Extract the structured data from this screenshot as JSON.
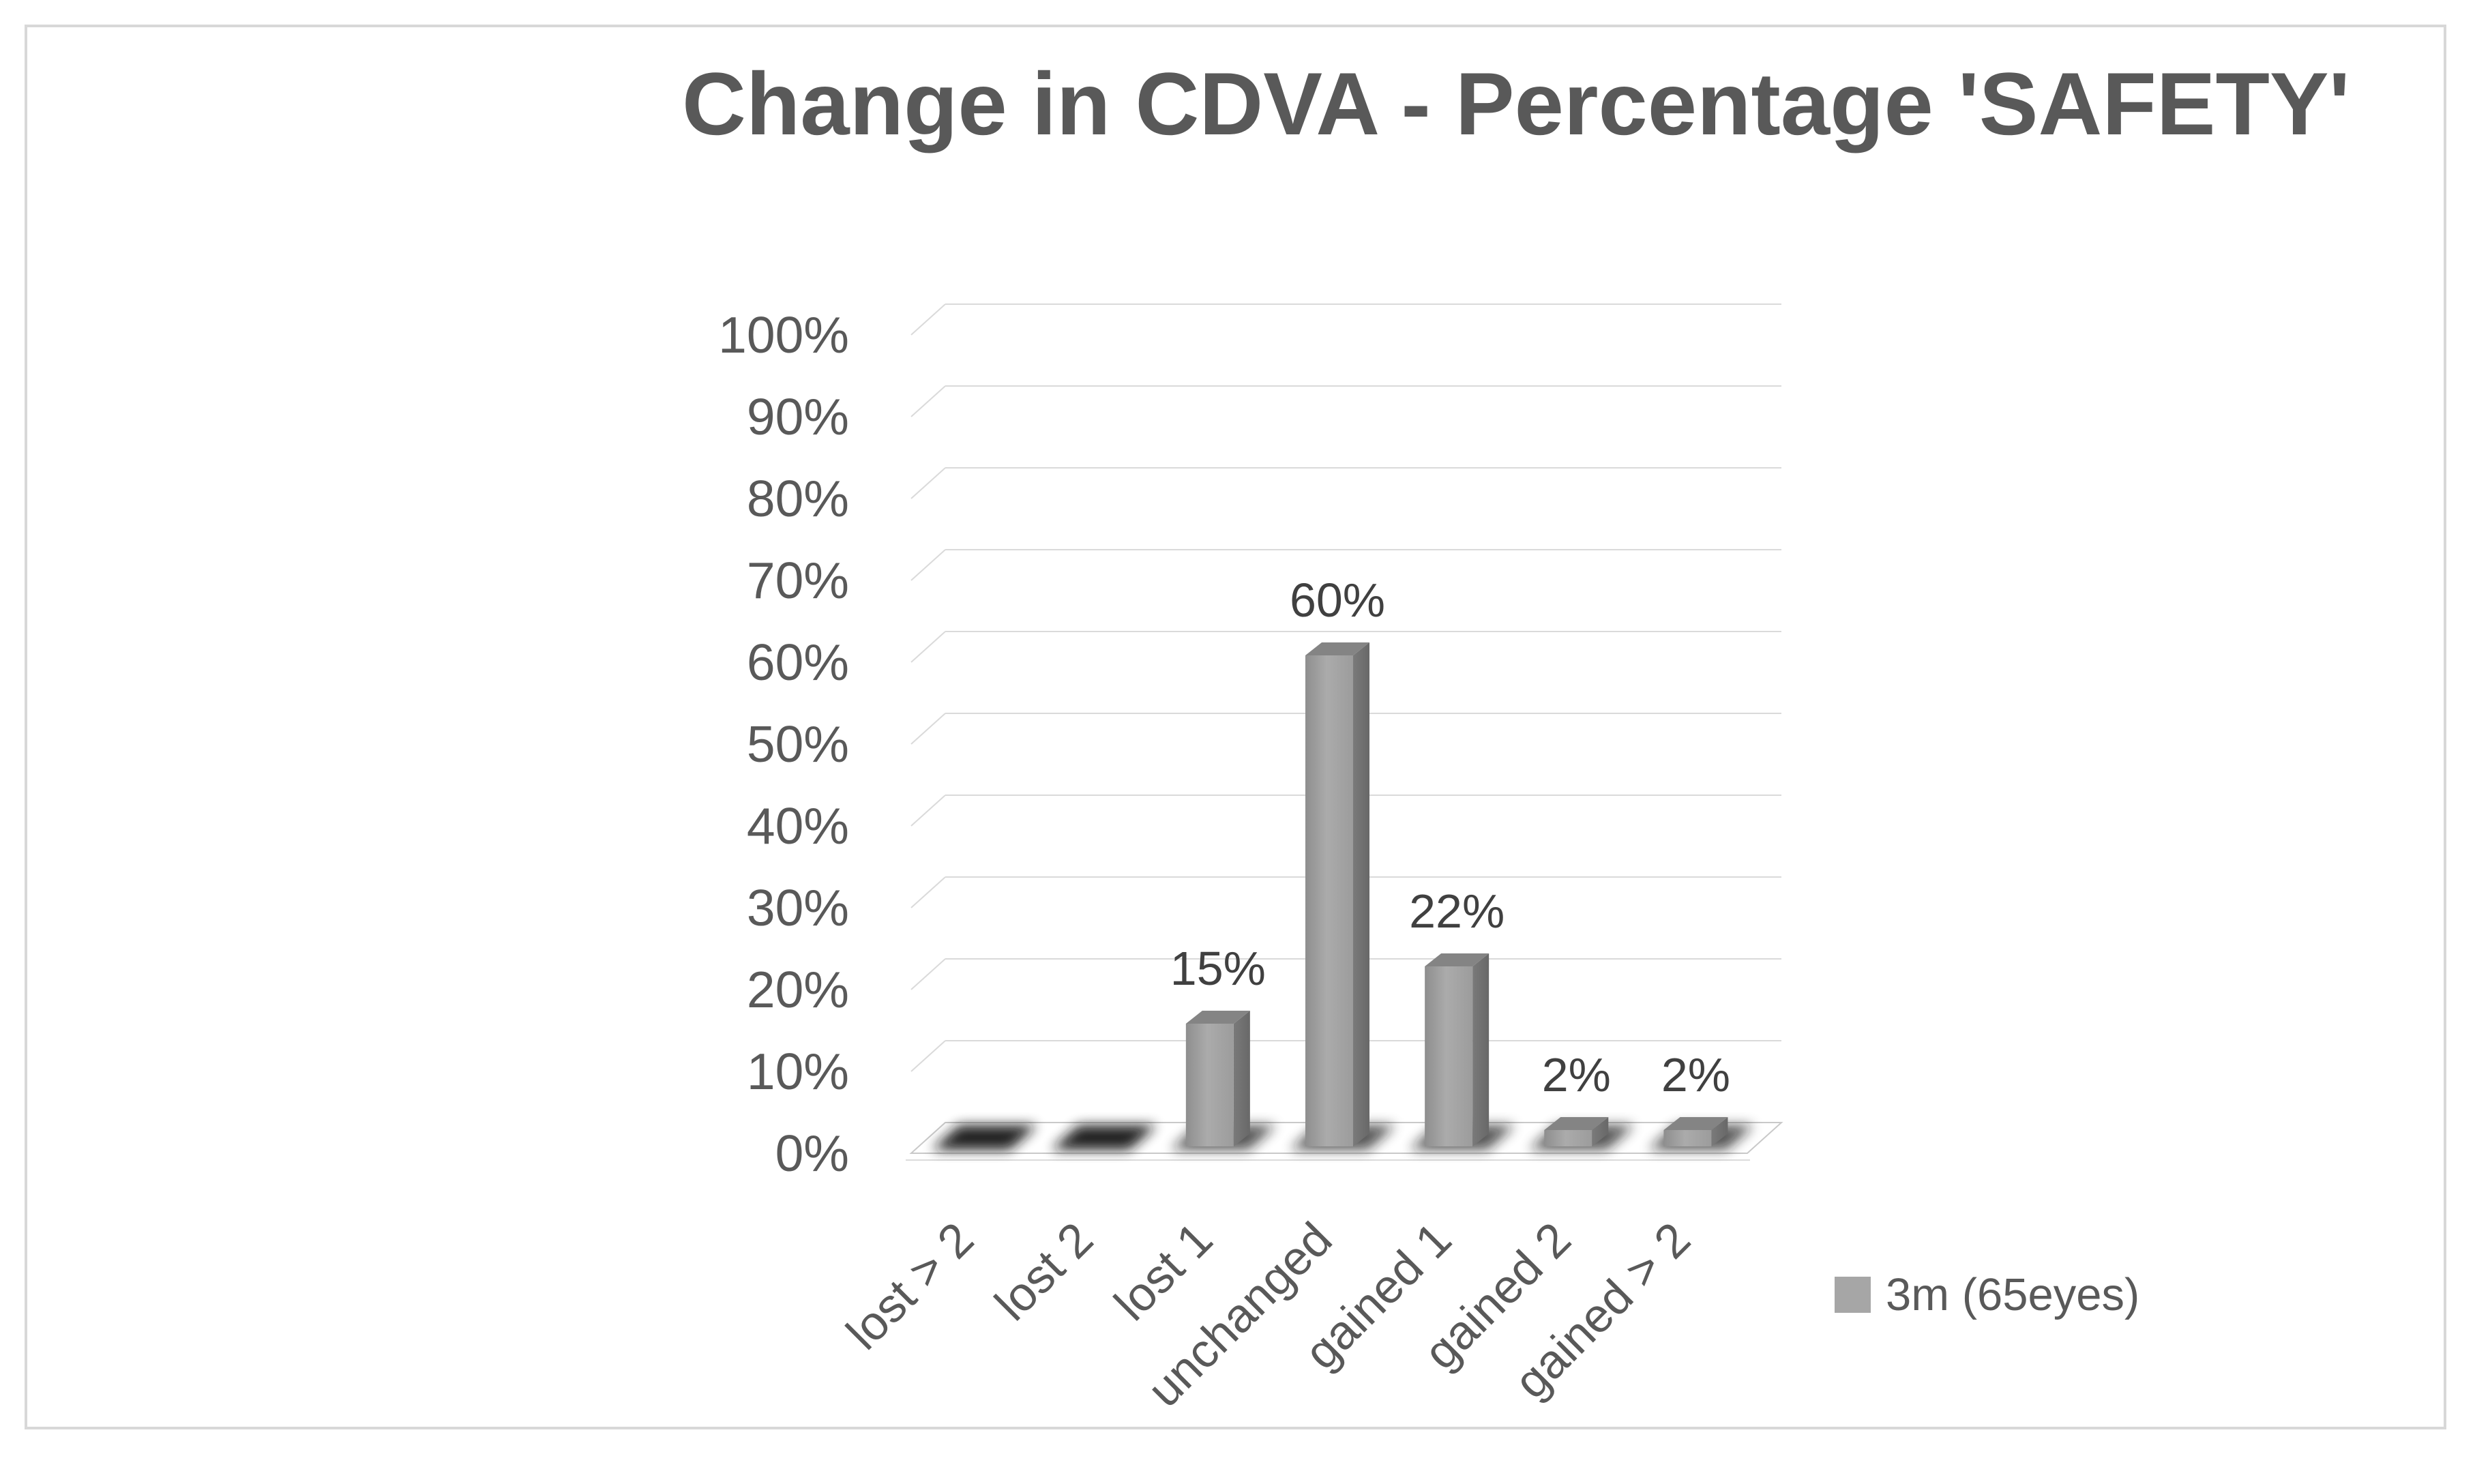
{
  "legend": {
    "label": "3m (65eyes)",
    "swatch_color": "#a6a6a6"
  },
  "colors": {
    "text": "#595959",
    "data_label": "#404040",
    "gridline": "#dadada",
    "floor_stroke": "#c9c9c9",
    "bar_front": "#a6a6a6",
    "bar_side": "#6f6f6f",
    "bar_top": "#848484",
    "shadow": "#141414"
  },
  "chart_data": {
    "type": "bar",
    "projection": "3d",
    "title": "Change in CDVA - Percentage 'SAFETY'",
    "categories": [
      "lost > 2",
      "lost 2",
      "lost 1",
      "unchanged",
      "gained 1",
      "gained 2",
      "gained > 2"
    ],
    "series": [
      {
        "name": "3m (65eyes)",
        "values": [
          0,
          0,
          15,
          60,
          22,
          2,
          2
        ]
      }
    ],
    "data_labels": [
      "",
      "",
      "15%",
      "60%",
      "22%",
      "2%",
      "2%"
    ],
    "y_ticks": [
      "0%",
      "10%",
      "20%",
      "30%",
      "40%",
      "50%",
      "60%",
      "70%",
      "80%",
      "90%",
      "100%"
    ],
    "ylim": [
      0,
      100
    ],
    "xlabel": "",
    "ylabel": "",
    "grid": true,
    "legend_position": "bottom-right"
  }
}
